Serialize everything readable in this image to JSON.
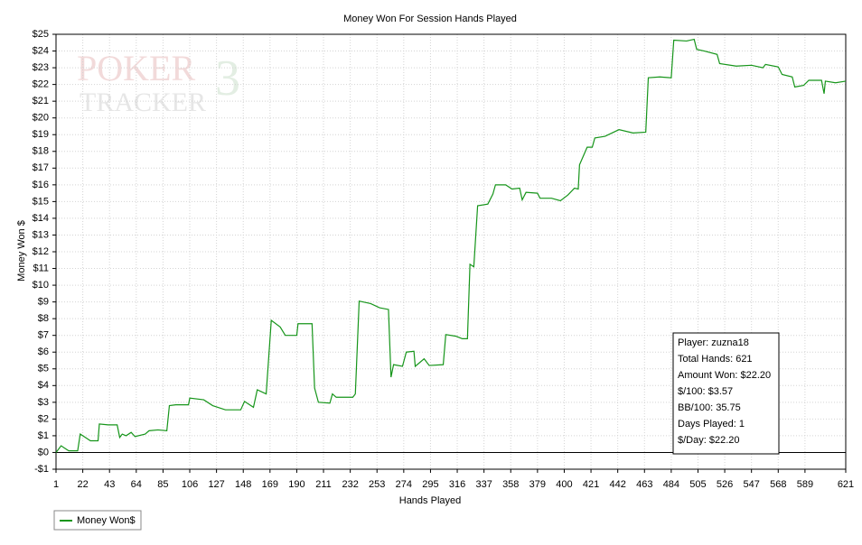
{
  "chart_data": {
    "type": "line",
    "title": "Money Won For Session Hands Played",
    "x_label": "Hands Played",
    "y_label": "Money Won $",
    "watermark": {
      "line1": "POKER",
      "line2": "TRACKER",
      "mark": "3"
    },
    "xlim": [
      1,
      621
    ],
    "ylim": [
      -1,
      25
    ],
    "xticks": [
      1,
      22,
      43,
      64,
      85,
      106,
      127,
      148,
      169,
      190,
      211,
      232,
      253,
      274,
      295,
      316,
      337,
      358,
      379,
      400,
      421,
      442,
      463,
      484,
      505,
      526,
      547,
      568,
      589,
      621
    ],
    "yticks": [
      {
        "value": -1,
        "label": "-$1"
      },
      {
        "value": 0,
        "label": "$0"
      },
      {
        "value": 1,
        "label": "$1"
      },
      {
        "value": 2,
        "label": "$2"
      },
      {
        "value": 3,
        "label": "$3"
      },
      {
        "value": 4,
        "label": "$4"
      },
      {
        "value": 5,
        "label": "$5"
      },
      {
        "value": 6,
        "label": "$6"
      },
      {
        "value": 7,
        "label": "$7"
      },
      {
        "value": 8,
        "label": "$8"
      },
      {
        "value": 9,
        "label": "$9"
      },
      {
        "value": 10,
        "label": "$10"
      },
      {
        "value": 11,
        "label": "$11"
      },
      {
        "value": 12,
        "label": "$12"
      },
      {
        "value": 13,
        "label": "$13"
      },
      {
        "value": 14,
        "label": "$14"
      },
      {
        "value": 15,
        "label": "$15"
      },
      {
        "value": 16,
        "label": "$16"
      },
      {
        "value": 17,
        "label": "$17"
      },
      {
        "value": 18,
        "label": "$18"
      },
      {
        "value": 19,
        "label": "$19"
      },
      {
        "value": 20,
        "label": "$20"
      },
      {
        "value": 21,
        "label": "$21"
      },
      {
        "value": 22,
        "label": "$22"
      },
      {
        "value": 23,
        "label": "$23"
      },
      {
        "value": 24,
        "label": "$24"
      },
      {
        "value": 25,
        "label": "$25"
      }
    ],
    "grid": true,
    "legend": "bottom-left",
    "x": [
      1,
      5,
      8,
      11,
      18,
      20,
      24,
      28,
      34,
      35,
      42,
      49,
      51,
      53,
      56,
      60,
      63,
      71,
      74,
      81,
      88,
      90,
      95,
      105,
      106,
      117,
      124,
      134,
      146,
      149,
      156,
      159,
      166,
      170,
      177,
      181,
      190,
      191,
      202,
      204,
      207,
      216,
      218,
      221,
      234,
      236,
      239,
      248,
      255,
      262,
      264,
      266,
      273,
      276,
      282,
      283,
      290,
      294,
      305,
      307,
      315,
      320,
      324,
      326,
      329,
      332,
      340,
      344,
      346,
      354,
      359,
      365,
      367,
      370,
      379,
      381,
      390,
      397,
      403,
      408,
      411,
      412,
      418,
      422,
      424,
      432,
      443,
      454,
      464,
      466,
      475,
      484,
      486,
      496,
      502,
      504,
      510,
      520,
      522,
      535,
      547,
      556,
      558,
      568,
      571,
      579,
      581,
      588,
      592,
      602,
      604,
      605,
      613,
      621
    ],
    "series": [
      {
        "name": "Money Won$",
        "color": "#16951a",
        "values": [
          0,
          0.4,
          0.25,
          0.1,
          0.1,
          1.1,
          0.9,
          0.7,
          0.7,
          1.7,
          1.65,
          1.65,
          0.9,
          1.1,
          1.0,
          1.2,
          0.95,
          1.1,
          1.3,
          1.35,
          1.3,
          2.8,
          2.85,
          2.85,
          3.25,
          3.15,
          2.8,
          2.55,
          2.55,
          3.05,
          2.7,
          3.75,
          3.5,
          7.9,
          7.5,
          7.0,
          7.0,
          7.7,
          7.7,
          3.85,
          3.0,
          2.95,
          3.5,
          3.3,
          3.3,
          3.5,
          9.05,
          8.9,
          8.65,
          8.55,
          4.5,
          5.25,
          5.15,
          6.0,
          6.05,
          5.15,
          5.6,
          5.2,
          5.25,
          7.05,
          6.95,
          6.8,
          6.8,
          11.25,
          11.1,
          14.75,
          14.85,
          15.45,
          16.0,
          16.0,
          15.75,
          15.8,
          15.1,
          15.55,
          15.5,
          15.2,
          15.2,
          15.05,
          15.4,
          15.8,
          15.75,
          17.2,
          18.25,
          18.25,
          18.8,
          18.9,
          19.3,
          19.1,
          19.15,
          22.4,
          22.45,
          22.4,
          24.65,
          24.6,
          24.7,
          24.1,
          24.0,
          23.8,
          23.25,
          23.1,
          23.15,
          23.0,
          23.2,
          23.05,
          22.6,
          22.45,
          21.85,
          21.95,
          22.25,
          22.25,
          21.45,
          22.2,
          22.1,
          22.2
        ]
      }
    ],
    "stats_box": [
      "Player: zuzna18",
      "Total Hands: 621",
      "Amount Won: $22.20",
      "$/100: $3.57",
      "BB/100: 35.75",
      "Days Played: 1",
      "$/Day: $22.20"
    ]
  }
}
